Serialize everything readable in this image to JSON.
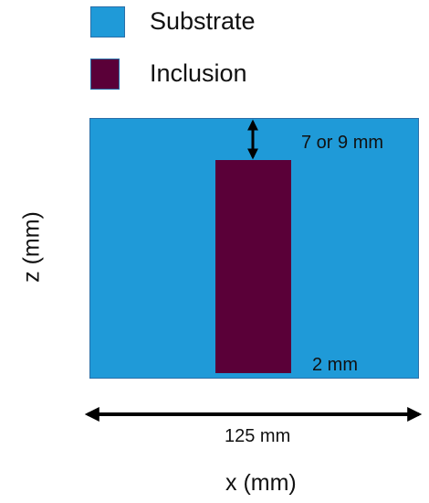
{
  "legend": {
    "items": [
      {
        "label": "Substrate",
        "color": "#1f9ad8"
      },
      {
        "label": "Inclusion",
        "color": "#5a0038"
      }
    ]
  },
  "diagram": {
    "substrate_color": "#1f9ad8",
    "inclusion_color": "#5a0038",
    "depth_label": "7 or 9 mm",
    "width_label": "2 mm",
    "length_label": "125 mm",
    "x_axis_label": "x (mm)",
    "z_axis_label": "z (mm)"
  }
}
